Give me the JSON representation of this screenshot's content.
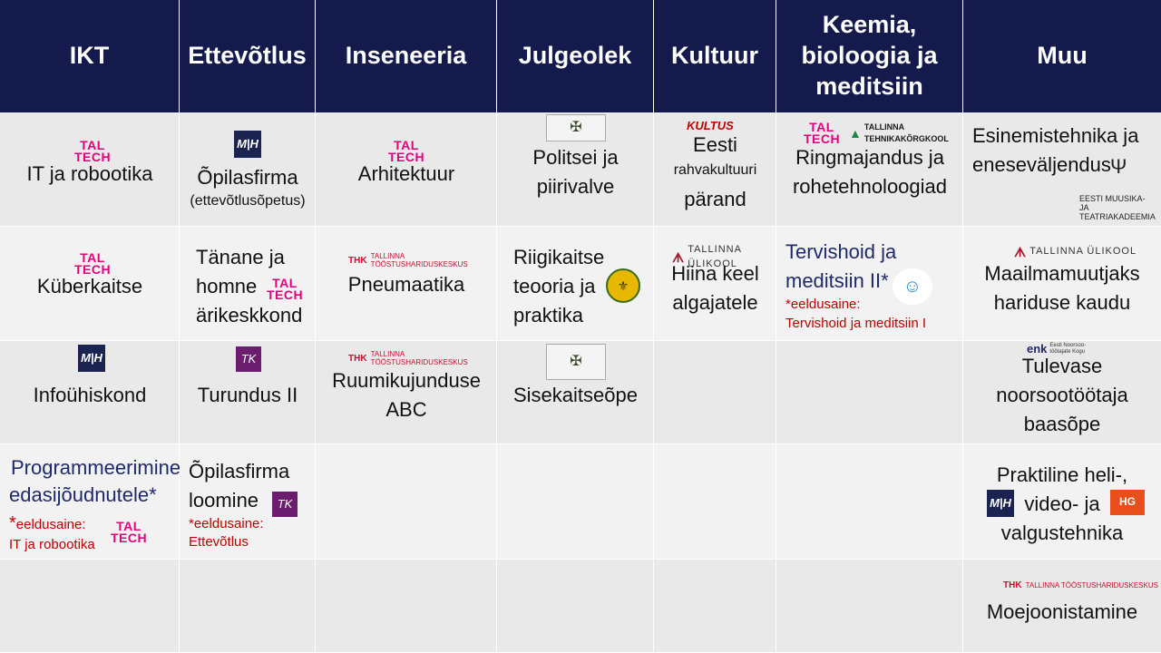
{
  "headers": [
    "IKT",
    "Ettevõtlus",
    "Inseneeria",
    "Julgeolek",
    "Kultuur",
    "Keemia, bioloogia ja meditsiin",
    "Muu"
  ],
  "logos": {
    "taltech": "TAL\nTECH",
    "mhm": "M|H",
    "thk": "THK",
    "thk_name": "TALLINNA TÖÖSTUSHARIDUSKESKUS",
    "tlu": "TALLINNA ÜLIKOOL",
    "kultus": "KULTUS",
    "ttk_a": "TALLINNA",
    "ttk_b": "TEHNIKAKÕRGKOOL",
    "emta_a": "EESTI MUUSIKA-",
    "emta_b": "JA TEATRIAKADEEMIA",
    "enk": "enk",
    "enk_name": "Eesti Noorsoo-töötajate Kogu",
    "hg": "HG"
  },
  "cells": {
    "r1": {
      "ikt": "IT ja robootika",
      "ett_a": "Õpilasfirma",
      "ett_b": "(ettevõtlusõpetus)",
      "ins": "Arhitektuur",
      "jul_a": "Politsei ja",
      "jul_b": "piirivalve",
      "kul_a": "Eesti",
      "kul_b": "rahvakultuuri",
      "kul_c": "pärand",
      "kbm_a": "Ringmajandus ja",
      "kbm_b": "rohetehnoloogiad",
      "muu_a": "Esinemistehnika ja",
      "muu_b": "eneseväljendus"
    },
    "r2": {
      "ikt": "Küberkaitse",
      "ett_a": "Tänane ja",
      "ett_b": "homne",
      "ett_c": "ärikeskkond",
      "ins": "Pneumaatika",
      "jul_a": "Riigikaitse",
      "jul_b": "teooria ja",
      "jul_c": "praktika",
      "kul_a": "Hiina keel",
      "kul_b": "algajatele",
      "kbm_a": "Tervishoid ja",
      "kbm_b": "meditsiin II*",
      "kbm_c": "*eeldusaine:",
      "kbm_d": "Tervishoid ja meditsiin I",
      "muu_a": "Maailmamuutjaks",
      "muu_b": "hariduse kaudu"
    },
    "r3": {
      "ikt": "Infoühiskond",
      "ett": "Turundus II",
      "ins_a": "Ruumikujunduse",
      "ins_b": "ABC",
      "jul": "Sisekaitseõpe",
      "muu_a": "Tulevase",
      "muu_b": "noorsootöötaja",
      "muu_c": "baasõpe"
    },
    "r4": {
      "ikt_a": "Programmeerimine",
      "ikt_b": "edasijõudnutele*",
      "ikt_c": "*",
      "ikt_d": "eeldusaine:",
      "ikt_e": "IT ja robootika",
      "ett_a": "Õpilasfirma",
      "ett_b": "loomine",
      "ett_c": "*eeldusaine:",
      "ett_d": "Ettevõtlus",
      "muu_a": "Praktiline heli-,",
      "muu_b": "video- ja",
      "muu_c": "valgustehnika"
    },
    "r5": {
      "muu": "Moejoonistamine"
    }
  }
}
